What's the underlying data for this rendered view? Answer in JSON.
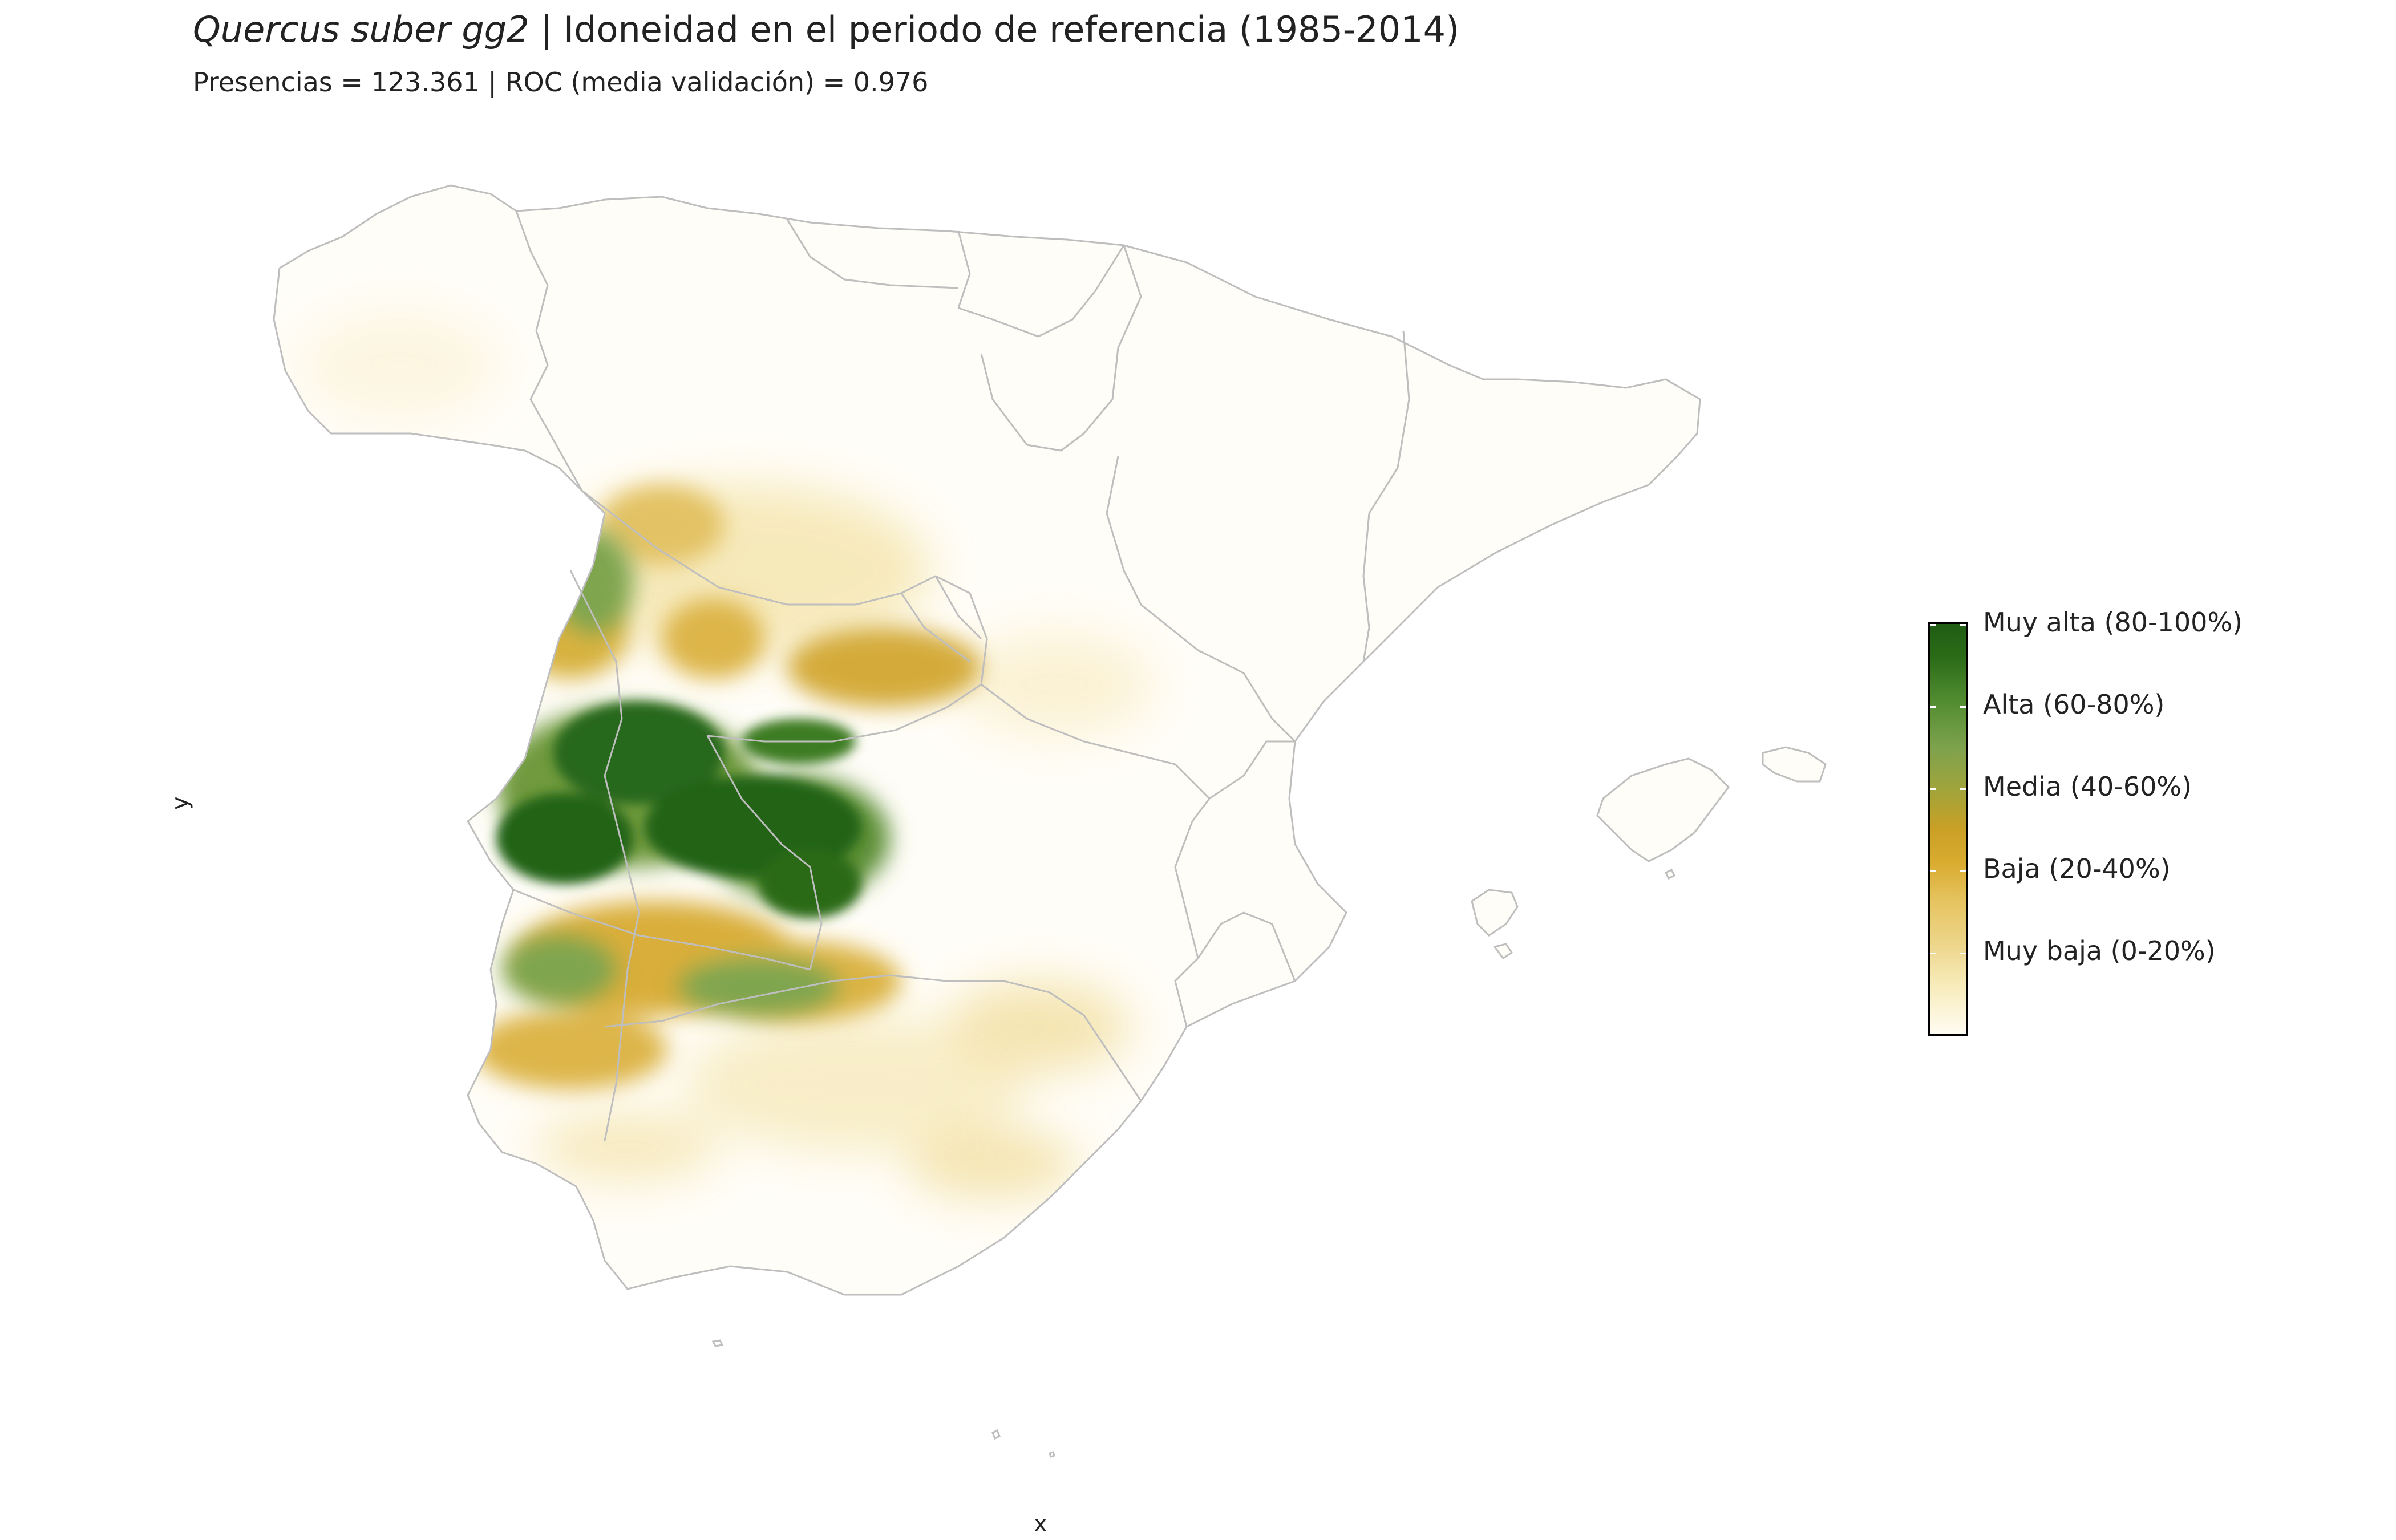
{
  "title": {
    "species": "Quercus suber gg2",
    "separator": " | ",
    "text": "Idoneidad en el periodo de referencia (1985-2014)"
  },
  "subtitle": "Presencias = 123.361  |  ROC (media validación) = 0.976",
  "axes": {
    "x_label": "x",
    "y_label": "y"
  },
  "legend": {
    "items": [
      {
        "label": "Muy alta (80-100%)",
        "range": [
          80,
          100
        ],
        "color": "#1F5E14"
      },
      {
        "label": "Alta (60-80%)",
        "range": [
          60,
          80
        ],
        "color": "#7DA24E"
      },
      {
        "label": "Media (40-60%)",
        "range": [
          40,
          60
        ],
        "color": "#C9A026"
      },
      {
        "label": "Baja (20-40%)",
        "range": [
          20,
          40
        ],
        "color": "#E6C461"
      },
      {
        "label": "Muy baja (0-20%)",
        "range": [
          0,
          20
        ],
        "color": "#FBF3D6"
      }
    ],
    "low_color": "#FFFCF2",
    "high_color": "#1F5E14"
  },
  "map": {
    "border_color": "#BEBEBE",
    "background": "#FFFFFF"
  }
}
